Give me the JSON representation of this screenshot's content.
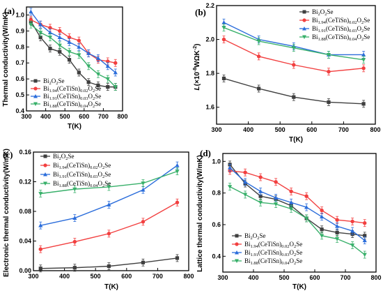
{
  "figure": {
    "panels": [
      {
        "label": "(a)",
        "xlabel": "T(K)",
        "ylabel": "Thermal conductivity(W/mK)"
      },
      {
        "label": "(b)",
        "xlabel": "T(K)",
        "ylabel": "L(×10⁻⁸WΩK⁻²)"
      },
      {
        "label": "(c)",
        "xlabel": "T(K)",
        "ylabel": "Electronic thermal conductivity(W/mK)"
      },
      {
        "label": "(d)",
        "xlabel": "T(K)",
        "ylabel": "Lattice thermal conductivity(W/mK)"
      }
    ],
    "legend": {
      "s0": {
        "base": "Bi",
        "sub1": "2",
        "mid1": "O",
        "sub2": "2",
        "rest": "Se",
        "sub3": ""
      },
      "s1": {
        "base": "Bi",
        "sub1": "1.94",
        "mid1": "(CeTiSn)",
        "sub2": "0.02",
        "rest": "O",
        "sub3": "2",
        "tail": "Se"
      },
      "s2": {
        "base": "Bi",
        "sub1": "1.91",
        "mid1": "(CeTiSn)",
        "sub2": "0.03",
        "rest": "O",
        "sub3": "2",
        "tail": "Se"
      },
      "s3": {
        "base": "Bi",
        "sub1": "1.88",
        "mid1": "(CeTiSn)",
        "sub2": "0.04",
        "rest": "O",
        "sub3": "2",
        "tail": "Se"
      }
    }
  },
  "chart_data": [
    {
      "type": "line",
      "panel": "(a)",
      "xlabel": "T(K)",
      "ylabel": "Thermal conductivity(W/mK)",
      "xlim": [
        300,
        800
      ],
      "ylim": [
        0.4,
        1.05
      ],
      "xticks": [
        300,
        400,
        500,
        600,
        700,
        800
      ],
      "yticks": [
        0.4,
        0.5,
        0.6,
        0.7,
        0.8,
        0.9,
        1.0
      ],
      "series": [
        {
          "name": "Bi2O2Se",
          "color": "#3f3f3f",
          "marker": "square",
          "x": [
            323,
            373,
            423,
            473,
            523,
            573,
            623,
            673,
            723,
            763
          ],
          "y": [
            0.96,
            0.86,
            0.79,
            0.77,
            0.72,
            0.64,
            0.58,
            0.56,
            0.55,
            0.55
          ]
        },
        {
          "name": "Bi1.94(CeTiSn)0.02O2Se",
          "color": "#f24040",
          "marker": "circle",
          "x": [
            323,
            373,
            423,
            473,
            523,
            573,
            623,
            673,
            723,
            763
          ],
          "y": [
            0.97,
            0.94,
            0.92,
            0.9,
            0.86,
            0.84,
            0.76,
            0.72,
            0.71,
            0.7
          ]
        },
        {
          "name": "Bi1.91(CeTiSn)0.03O2Se",
          "color": "#2b6ddb",
          "marker": "triangle",
          "x": [
            323,
            373,
            423,
            473,
            523,
            573,
            623,
            673,
            723,
            763
          ],
          "y": [
            1.02,
            0.94,
            0.89,
            0.86,
            0.83,
            0.8,
            0.76,
            0.73,
            0.68,
            0.64
          ]
        },
        {
          "name": "Bi1.88(CeTiSn)0.04O2Se",
          "color": "#38b06a",
          "marker": "triangle-down",
          "x": [
            323,
            373,
            423,
            473,
            523,
            573,
            623,
            673,
            723,
            763
          ],
          "y": [
            0.94,
            0.89,
            0.86,
            0.81,
            0.77,
            0.75,
            0.68,
            0.63,
            0.6,
            0.55
          ]
        }
      ]
    },
    {
      "type": "line",
      "panel": "(b)",
      "xlabel": "T(K)",
      "ylabel": "L(×10⁻⁸WΩK⁻²)",
      "xlim": [
        300,
        800
      ],
      "ylim": [
        1.5,
        2.2
      ],
      "xticks": [
        300,
        400,
        500,
        600,
        700,
        800
      ],
      "yticks": [
        1.6,
        1.8,
        2.0,
        2.2
      ],
      "series": [
        {
          "name": "Bi2O2Se",
          "color": "#3f3f3f",
          "marker": "square",
          "x": [
            323,
            433,
            543,
            653,
            763
          ],
          "y": [
            1.77,
            1.71,
            1.66,
            1.63,
            1.62
          ]
        },
        {
          "name": "Bi1.94(CeTiSn)0.02O2Se",
          "color": "#f24040",
          "marker": "circle",
          "x": [
            323,
            433,
            543,
            653,
            763
          ],
          "y": [
            2.0,
            1.9,
            1.85,
            1.81,
            1.83
          ]
        },
        {
          "name": "Bi1.91(CeTiSn)0.03O2Se",
          "color": "#2b6ddb",
          "marker": "triangle",
          "x": [
            323,
            433,
            543,
            653,
            763
          ],
          "y": [
            2.1,
            2.0,
            1.96,
            1.91,
            1.91
          ]
        },
        {
          "name": "Bi1.88(CeTiSn)0.04O2Se",
          "color": "#38b06a",
          "marker": "triangle-down",
          "x": [
            323,
            433,
            543,
            653,
            763
          ],
          "y": [
            2.07,
            1.99,
            1.95,
            1.91,
            1.88
          ]
        }
      ]
    },
    {
      "type": "line",
      "panel": "(c)",
      "xlabel": "T(K)",
      "ylabel": "Electronic thermal conductivity(W/mK)",
      "xlim": [
        300,
        800
      ],
      "ylim": [
        0.0,
        0.16
      ],
      "xticks": [
        300,
        400,
        500,
        600,
        700,
        800
      ],
      "yticks": [
        0.0,
        0.04,
        0.08,
        0.12,
        0.16
      ],
      "series": [
        {
          "name": "Bi2O2Se",
          "color": "#3f3f3f",
          "marker": "square",
          "x": [
            323,
            433,
            543,
            653,
            763
          ],
          "y": [
            0.003,
            0.004,
            0.006,
            0.011,
            0.017
          ]
        },
        {
          "name": "Bi1.94(CeTiSn)0.02O2Se",
          "color": "#f24040",
          "marker": "circle",
          "x": [
            323,
            433,
            543,
            653,
            763
          ],
          "y": [
            0.029,
            0.039,
            0.05,
            0.066,
            0.092
          ]
        },
        {
          "name": "Bi1.91(CeTiSn)0.03O2Se",
          "color": "#2b6ddb",
          "marker": "triangle",
          "x": [
            323,
            433,
            543,
            653,
            763
          ],
          "y": [
            0.061,
            0.071,
            0.089,
            0.109,
            0.142
          ]
        },
        {
          "name": "Bi1.88(CeTiSn)0.04O2Se",
          "color": "#38b06a",
          "marker": "triangle-down",
          "x": [
            323,
            433,
            543,
            653,
            763
          ],
          "y": [
            0.104,
            0.11,
            0.113,
            0.118,
            0.134
          ]
        }
      ]
    },
    {
      "type": "line",
      "panel": "(d)",
      "xlabel": "T(K)",
      "ylabel": "Lattice thermal conductivity(W/mK)",
      "xlim": [
        300,
        800
      ],
      "ylim": [
        0.3,
        1.05
      ],
      "xticks": [
        300,
        400,
        500,
        600,
        700,
        800
      ],
      "yticks": [
        0.4,
        0.6,
        0.8,
        1.0
      ],
      "series": [
        {
          "name": "Bi2O2Se",
          "color": "#3f3f3f",
          "marker": "square",
          "x": [
            323,
            373,
            423,
            473,
            523,
            573,
            623,
            673,
            723,
            763
          ],
          "y": [
            0.98,
            0.86,
            0.78,
            0.76,
            0.72,
            0.64,
            0.57,
            0.55,
            0.54,
            0.53
          ]
        },
        {
          "name": "Bi1.94(CeTiSn)0.02O2Se",
          "color": "#f24040",
          "marker": "circle",
          "x": [
            323,
            373,
            423,
            473,
            523,
            573,
            623,
            673,
            723,
            763
          ],
          "y": [
            0.94,
            0.93,
            0.9,
            0.87,
            0.81,
            0.78,
            0.69,
            0.63,
            0.62,
            0.61
          ]
        },
        {
          "name": "Bi1.91(CeTiSn)0.03O2Se",
          "color": "#2b6ddb",
          "marker": "triangle",
          "x": [
            323,
            373,
            423,
            473,
            523,
            573,
            623,
            673,
            723,
            763
          ],
          "y": [
            0.96,
            0.87,
            0.81,
            0.77,
            0.74,
            0.71,
            0.65,
            0.59,
            0.56,
            0.5
          ]
        },
        {
          "name": "Bi1.88(CeTiSn)0.04O2Se",
          "color": "#38b06a",
          "marker": "triangle-down",
          "x": [
            323,
            373,
            423,
            473,
            523,
            573,
            623,
            673,
            723,
            763
          ],
          "y": [
            0.84,
            0.79,
            0.74,
            0.73,
            0.7,
            0.64,
            0.53,
            0.51,
            0.47,
            0.41
          ]
        }
      ]
    }
  ]
}
